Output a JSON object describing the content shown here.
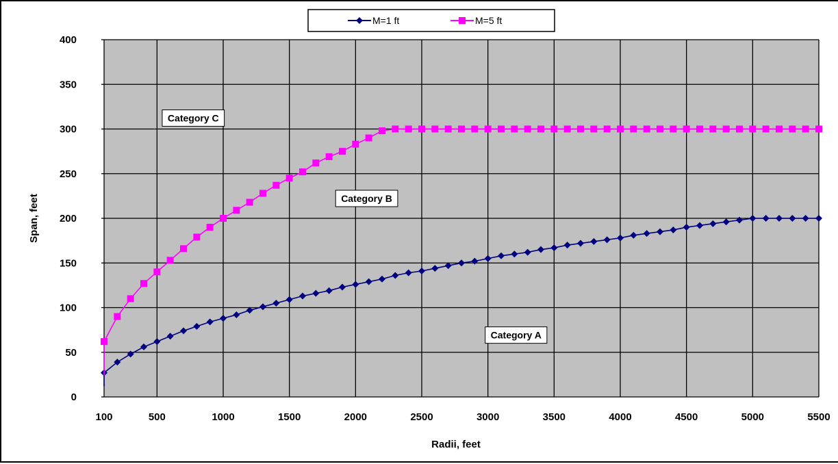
{
  "chart_data": {
    "type": "line",
    "title": "",
    "xlabel": "Radii, feet",
    "ylabel": "Span, feet",
    "xlim": [
      100,
      5500
    ],
    "ylim": [
      0,
      400
    ],
    "x_ticks": [
      100,
      500,
      1000,
      1500,
      2000,
      2500,
      3000,
      3500,
      4000,
      4500,
      5000,
      5500
    ],
    "y_ticks": [
      0,
      50,
      100,
      150,
      200,
      250,
      300,
      350,
      400
    ],
    "grid": true,
    "legend_position": "top-center",
    "plot_background": "#c0c0c0",
    "series": [
      {
        "name": "M=1 ft",
        "color": "#000080",
        "marker": "diamond",
        "x": [
          100,
          100,
          200,
          300,
          400,
          500,
          600,
          700,
          800,
          900,
          1000,
          1100,
          1200,
          1300,
          1400,
          1500,
          1600,
          1700,
          1800,
          1900,
          2000,
          2100,
          2200,
          2300,
          2400,
          2500,
          2600,
          2700,
          2800,
          2900,
          3000,
          3100,
          3200,
          3300,
          3400,
          3500,
          3600,
          3700,
          3800,
          3900,
          4000,
          4100,
          4200,
          4300,
          4400,
          4500,
          4600,
          4700,
          4800,
          4900,
          5000,
          5100,
          5200,
          5300,
          5400,
          5500
        ],
        "y": [
          12,
          27,
          39,
          48,
          56,
          62,
          68,
          74,
          79,
          84,
          88,
          92,
          97,
          101,
          105,
          109,
          113,
          116,
          119,
          123,
          126,
          129,
          132,
          136,
          139,
          141,
          144,
          147,
          150,
          152,
          155,
          158,
          160,
          162,
          165,
          167,
          170,
          172,
          174,
          176,
          178,
          181,
          183,
          185,
          187,
          190,
          192,
          194,
          196,
          198,
          200,
          200,
          200,
          200,
          200,
          200
        ],
        "markers_from": 1
      },
      {
        "name": "M=5 ft",
        "color": "#ff00ff",
        "marker": "square",
        "x": [
          100,
          100,
          200,
          300,
          400,
          500,
          600,
          700,
          800,
          900,
          1000,
          1100,
          1200,
          1300,
          1400,
          1500,
          1600,
          1700,
          1800,
          1900,
          2000,
          2100,
          2200,
          2300,
          2400,
          2500,
          2600,
          2700,
          2800,
          2900,
          3000,
          3100,
          3200,
          3300,
          3400,
          3500,
          3600,
          3700,
          3800,
          3900,
          4000,
          4100,
          4200,
          4300,
          4400,
          4500,
          4600,
          4700,
          4800,
          4900,
          5000,
          5100,
          5200,
          5300,
          5400,
          5500
        ],
        "y": [
          24,
          62,
          90,
          110,
          127,
          140,
          153,
          166,
          179,
          190,
          200,
          209,
          218,
          228,
          237,
          245,
          252,
          262,
          269,
          275,
          283,
          290,
          298,
          300,
          300,
          300,
          300,
          300,
          300,
          300,
          300,
          300,
          300,
          300,
          300,
          300,
          300,
          300,
          300,
          300,
          300,
          300,
          300,
          300,
          300,
          300,
          300,
          300,
          300,
          300,
          300,
          300,
          300,
          300,
          300,
          300
        ],
        "markers_from": 1
      }
    ],
    "annotations": [
      {
        "text": "Category C",
        "x": 560,
        "y": 313
      },
      {
        "text": "Category B",
        "x": 1870,
        "y": 223
      },
      {
        "text": "Category  A",
        "x": 3000,
        "y": 70
      }
    ]
  }
}
